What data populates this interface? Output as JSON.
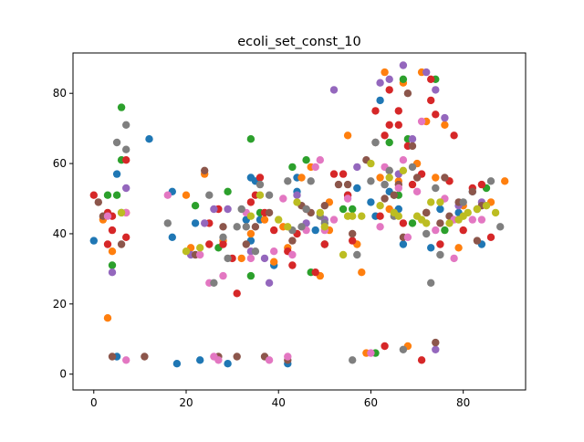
{
  "chart_data": {
    "type": "scatter",
    "title": "ecoli_set_const_10",
    "xlabel": "",
    "ylabel": "",
    "xlim": [
      -4.5,
      93.5
    ],
    "ylim": [
      -4.5,
      91.5
    ],
    "xticks": [
      0,
      20,
      40,
      60,
      80
    ],
    "yticks": [
      0,
      20,
      40,
      60,
      80
    ],
    "xtick_labels": [
      "0",
      "20",
      "40",
      "60",
      "80"
    ],
    "ytick_labels": [
      "0",
      "20",
      "40",
      "60",
      "80"
    ],
    "grid": false,
    "legend": "none",
    "colors": [
      "#1f77b4",
      "#ff7f0e",
      "#2ca02c",
      "#d62728",
      "#9467bd",
      "#8c564b",
      "#e377c2",
      "#7f7f7f",
      "#bcbd22",
      "#17becf"
    ],
    "series": [
      {
        "color": "#1f77b4",
        "points": [
          [
            0,
            38
          ],
          [
            5,
            57
          ],
          [
            5,
            5
          ],
          [
            12,
            67
          ],
          [
            17,
            52
          ],
          [
            17,
            39
          ],
          [
            18,
            3
          ],
          [
            22,
            43
          ],
          [
            23,
            4
          ],
          [
            29,
            3
          ],
          [
            33,
            44
          ],
          [
            34,
            56
          ],
          [
            35,
            55
          ],
          [
            34,
            38
          ],
          [
            36,
            44
          ],
          [
            39,
            31
          ],
          [
            42,
            3
          ],
          [
            44,
            52
          ],
          [
            44,
            56
          ],
          [
            48,
            41
          ],
          [
            55,
            51
          ],
          [
            57,
            53
          ],
          [
            60,
            49
          ],
          [
            61,
            45
          ],
          [
            62,
            78
          ],
          [
            64,
            52
          ],
          [
            66,
            47
          ],
          [
            67,
            37
          ],
          [
            73,
            36
          ],
          [
            75,
            47
          ],
          [
            79,
            46
          ],
          [
            82,
            52
          ],
          [
            84,
            37
          ]
        ]
      },
      {
        "color": "#ff7f0e",
        "points": [
          [
            2,
            44
          ],
          [
            3,
            16
          ],
          [
            4,
            35
          ],
          [
            7,
            46
          ],
          [
            20,
            51
          ],
          [
            21,
            36
          ],
          [
            24,
            57
          ],
          [
            28,
            38
          ],
          [
            32,
            33
          ],
          [
            34,
            40
          ],
          [
            37,
            44
          ],
          [
            39,
            32
          ],
          [
            41,
            42
          ],
          [
            42,
            36
          ],
          [
            45,
            56
          ],
          [
            47,
            59
          ],
          [
            49,
            28
          ],
          [
            51,
            49
          ],
          [
            51,
            41
          ],
          [
            55,
            68
          ],
          [
            57,
            37
          ],
          [
            58,
            29
          ],
          [
            59,
            6
          ],
          [
            62,
            56
          ],
          [
            63,
            86
          ],
          [
            64,
            47
          ],
          [
            66,
            55
          ],
          [
            67,
            83
          ],
          [
            68,
            8
          ],
          [
            70,
            60
          ],
          [
            71,
            86
          ],
          [
            72,
            72
          ],
          [
            74,
            56
          ],
          [
            76,
            71
          ],
          [
            77,
            55
          ],
          [
            79,
            36
          ],
          [
            80,
            48
          ],
          [
            86,
            49
          ],
          [
            89,
            55
          ]
        ]
      },
      {
        "color": "#2ca02c",
        "points": [
          [
            3,
            51
          ],
          [
            4,
            31
          ],
          [
            5,
            51
          ],
          [
            6,
            76
          ],
          [
            6,
            61
          ],
          [
            6,
            46
          ],
          [
            22,
            48
          ],
          [
            27,
            36
          ],
          [
            29,
            52
          ],
          [
            34,
            67
          ],
          [
            34,
            28
          ],
          [
            36,
            46
          ],
          [
            43,
            59
          ],
          [
            46,
            61
          ],
          [
            47,
            29
          ],
          [
            50,
            37
          ],
          [
            54,
            47
          ],
          [
            56,
            47
          ],
          [
            61,
            6
          ],
          [
            64,
            66
          ],
          [
            65,
            51
          ],
          [
            66,
            51
          ],
          [
            67,
            84
          ],
          [
            68,
            67
          ],
          [
            69,
            43
          ],
          [
            72,
            46
          ],
          [
            74,
            84
          ],
          [
            76,
            41
          ],
          [
            85,
            53
          ]
        ]
      },
      {
        "color": "#d62728",
        "points": [
          [
            0,
            51
          ],
          [
            3,
            46
          ],
          [
            3,
            37
          ],
          [
            4,
            45
          ],
          [
            4,
            41
          ],
          [
            7,
            61
          ],
          [
            7,
            39
          ],
          [
            25,
            43
          ],
          [
            25,
            37
          ],
          [
            27,
            47
          ],
          [
            28,
            37
          ],
          [
            30,
            33
          ],
          [
            31,
            23
          ],
          [
            34,
            49
          ],
          [
            35,
            51
          ],
          [
            36,
            56
          ],
          [
            37,
            46
          ],
          [
            39,
            41
          ],
          [
            42,
            35
          ],
          [
            43,
            31
          ],
          [
            44,
            40
          ],
          [
            46,
            47
          ],
          [
            48,
            29
          ],
          [
            50,
            37
          ],
          [
            52,
            57
          ],
          [
            54,
            57
          ],
          [
            55,
            51
          ],
          [
            56,
            38
          ],
          [
            61,
            75
          ],
          [
            62,
            45
          ],
          [
            63,
            8
          ],
          [
            63,
            68
          ],
          [
            64,
            81
          ],
          [
            64,
            71
          ],
          [
            66,
            71
          ],
          [
            66,
            75
          ],
          [
            67,
            43
          ],
          [
            68,
            65
          ],
          [
            69,
            54
          ],
          [
            71,
            4
          ],
          [
            71,
            57
          ],
          [
            72,
            46
          ],
          [
            73,
            84
          ],
          [
            73,
            78
          ],
          [
            74,
            74
          ],
          [
            75,
            37
          ],
          [
            77,
            55
          ],
          [
            78,
            68
          ],
          [
            80,
            41
          ],
          [
            82,
            53
          ],
          [
            84,
            54
          ],
          [
            86,
            39
          ]
        ]
      },
      {
        "color": "#9467bd",
        "points": [
          [
            4,
            29
          ],
          [
            7,
            53
          ],
          [
            21,
            34
          ],
          [
            24,
            43
          ],
          [
            26,
            47
          ],
          [
            29,
            47
          ],
          [
            34,
            35
          ],
          [
            37,
            33
          ],
          [
            38,
            26
          ],
          [
            44,
            51
          ],
          [
            46,
            43
          ],
          [
            50,
            44
          ],
          [
            52,
            81
          ],
          [
            57,
            59
          ],
          [
            62,
            83
          ],
          [
            63,
            54
          ],
          [
            64,
            84
          ],
          [
            66,
            57
          ],
          [
            67,
            88
          ],
          [
            69,
            67
          ],
          [
            72,
            86
          ],
          [
            74,
            7
          ],
          [
            74,
            81
          ],
          [
            76,
            73
          ],
          [
            79,
            48
          ],
          [
            84,
            49
          ]
        ]
      },
      {
        "color": "#8c564b",
        "points": [
          [
            1,
            49
          ],
          [
            2,
            45
          ],
          [
            4,
            5
          ],
          [
            6,
            37
          ],
          [
            11,
            5
          ],
          [
            22,
            34
          ],
          [
            24,
            58
          ],
          [
            27,
            5
          ],
          [
            28,
            42
          ],
          [
            31,
            5
          ],
          [
            33,
            37
          ],
          [
            35,
            42
          ],
          [
            37,
            5
          ],
          [
            38,
            46
          ],
          [
            42,
            4
          ],
          [
            43,
            38
          ],
          [
            45,
            48
          ],
          [
            47,
            46
          ],
          [
            50,
            48
          ],
          [
            53,
            54
          ],
          [
            55,
            54
          ],
          [
            56,
            40
          ],
          [
            59,
            61
          ],
          [
            61,
            66
          ],
          [
            63,
            50
          ],
          [
            64,
            58
          ],
          [
            65,
            51
          ],
          [
            66,
            54
          ],
          [
            67,
            39
          ],
          [
            68,
            80
          ],
          [
            69,
            65
          ],
          [
            70,
            56
          ],
          [
            72,
            46
          ],
          [
            74,
            9
          ],
          [
            75,
            43
          ],
          [
            76,
            56
          ],
          [
            77,
            45
          ],
          [
            79,
            49
          ],
          [
            82,
            52
          ],
          [
            83,
            38
          ],
          [
            84,
            48
          ]
        ]
      },
      {
        "color": "#e377c2",
        "points": [
          [
            3,
            45
          ],
          [
            7,
            4
          ],
          [
            7,
            46
          ],
          [
            16,
            51
          ],
          [
            23,
            34
          ],
          [
            25,
            26
          ],
          [
            26,
            5
          ],
          [
            27,
            4
          ],
          [
            28,
            28
          ],
          [
            33,
            46
          ],
          [
            34,
            33
          ],
          [
            38,
            4
          ],
          [
            39,
            35
          ],
          [
            41,
            50
          ],
          [
            42,
            5
          ],
          [
            43,
            34
          ],
          [
            46,
            41
          ],
          [
            48,
            59
          ],
          [
            49,
            61
          ],
          [
            50,
            41
          ],
          [
            52,
            44
          ],
          [
            55,
            50
          ],
          [
            60,
            6
          ],
          [
            62,
            42
          ],
          [
            63,
            59
          ],
          [
            65,
            46
          ],
          [
            66,
            53
          ],
          [
            67,
            61
          ],
          [
            68,
            39
          ],
          [
            70,
            52
          ],
          [
            71,
            72
          ],
          [
            74,
            41
          ],
          [
            76,
            50
          ],
          [
            78,
            33
          ],
          [
            78,
            44
          ],
          [
            82,
            44
          ],
          [
            84,
            44
          ]
        ]
      },
      {
        "color": "#7f7f7f",
        "points": [
          [
            5,
            66
          ],
          [
            7,
            71
          ],
          [
            7,
            64
          ],
          [
            16,
            43
          ],
          [
            25,
            51
          ],
          [
            26,
            26
          ],
          [
            28,
            39
          ],
          [
            29,
            33
          ],
          [
            31,
            42
          ],
          [
            32,
            47
          ],
          [
            33,
            42
          ],
          [
            35,
            35
          ],
          [
            36,
            54
          ],
          [
            38,
            51
          ],
          [
            42,
            55
          ],
          [
            43,
            41
          ],
          [
            45,
            42
          ],
          [
            46,
            47
          ],
          [
            47,
            55
          ],
          [
            49,
            45
          ],
          [
            50,
            43
          ],
          [
            56,
            4
          ],
          [
            57,
            34
          ],
          [
            60,
            55
          ],
          [
            61,
            66
          ],
          [
            63,
            54
          ],
          [
            64,
            58
          ],
          [
            65,
            45
          ],
          [
            67,
            7
          ],
          [
            69,
            59
          ],
          [
            72,
            40
          ],
          [
            73,
            26
          ],
          [
            74,
            53
          ],
          [
            75,
            34
          ],
          [
            80,
            49
          ],
          [
            83,
            47
          ],
          [
            86,
            55
          ],
          [
            88,
            42
          ]
        ]
      },
      {
        "color": "#bcbd22",
        "points": [
          [
            6,
            46
          ],
          [
            20,
            35
          ],
          [
            23,
            36
          ],
          [
            34,
            45
          ],
          [
            36,
            51
          ],
          [
            40,
            44
          ],
          [
            42,
            42
          ],
          [
            44,
            49
          ],
          [
            49,
            46
          ],
          [
            50,
            42
          ],
          [
            54,
            34
          ],
          [
            55,
            45
          ],
          [
            56,
            45
          ],
          [
            58,
            45
          ],
          [
            60,
            60
          ],
          [
            62,
            48
          ],
          [
            64,
            56
          ],
          [
            65,
            46
          ],
          [
            66,
            45
          ],
          [
            67,
            58
          ],
          [
            70,
            45
          ],
          [
            71,
            44
          ],
          [
            72,
            43
          ],
          [
            73,
            49
          ],
          [
            75,
            49
          ],
          [
            77,
            43
          ],
          [
            79,
            44
          ],
          [
            80,
            45
          ],
          [
            81,
            46
          ],
          [
            83,
            47
          ],
          [
            85,
            48
          ],
          [
            87,
            46
          ]
        ]
      }
    ]
  }
}
